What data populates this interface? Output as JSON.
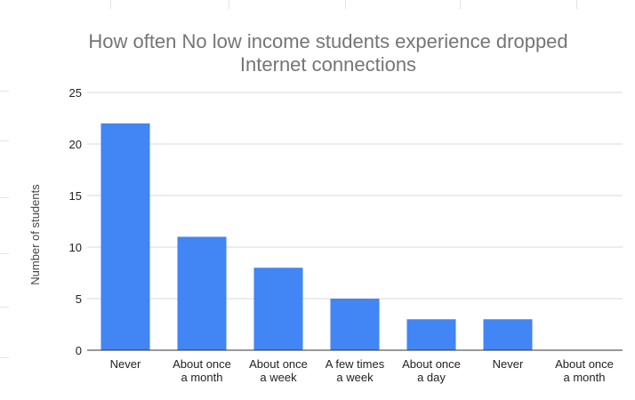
{
  "chart_data": {
    "type": "bar",
    "title_lines": [
      "How often No low income students experience dropped",
      "Internet connections"
    ],
    "xlabel": "",
    "ylabel": "Number of students",
    "ylim": [
      0,
      25
    ],
    "yticks": [
      0,
      5,
      10,
      15,
      20,
      25
    ],
    "grid": true,
    "legend": "none",
    "bar_color": "#4285f4",
    "categories": [
      [
        "Never"
      ],
      [
        "About once",
        "a month"
      ],
      [
        "About once",
        "a week"
      ],
      [
        "A few times",
        "a week"
      ],
      [
        "About once",
        "a day"
      ],
      [
        "Never"
      ],
      [
        "About once",
        "a month"
      ]
    ],
    "values": [
      22,
      11,
      8,
      5,
      3,
      3,
      0
    ]
  }
}
